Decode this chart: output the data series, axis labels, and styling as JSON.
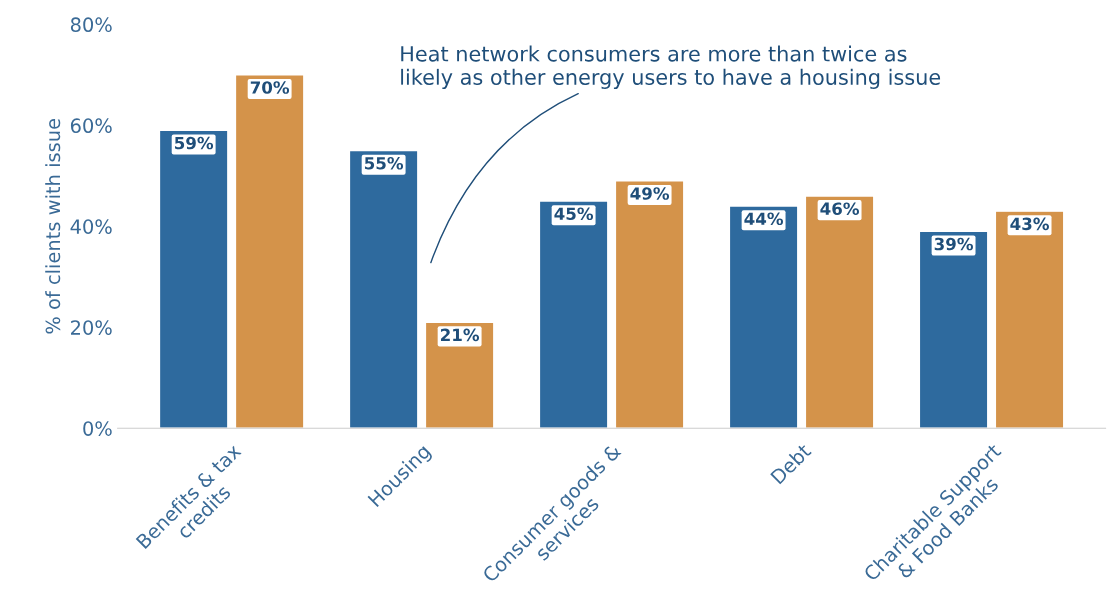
{
  "chart_data": {
    "type": "bar",
    "ylabel": "% of clients with issue",
    "categories": [
      "Benefits & tax\ncredits",
      "Housing",
      "Consumer goods &\nservices",
      "Debt",
      "Charitable Support\n& Food Banks"
    ],
    "series": [
      {
        "color": "#2e6a9e",
        "values": [
          59,
          55,
          45,
          44,
          39
        ],
        "value_labels": [
          "59%",
          "55%",
          "45%",
          "44%",
          "39%"
        ]
      },
      {
        "color": "#d4934a",
        "values": [
          70,
          21,
          49,
          46,
          43
        ],
        "value_labels": [
          "70%",
          "21%",
          "49%",
          "46%",
          "43%"
        ]
      }
    ],
    "ylim": [
      0,
      80
    ],
    "yticks": [
      {
        "value": 0,
        "label": "0%"
      },
      {
        "value": 20,
        "label": "20%"
      },
      {
        "value": 40,
        "label": "40%"
      },
      {
        "value": 60,
        "label": "60%"
      },
      {
        "value": 80,
        "label": "80%"
      }
    ],
    "grid": false,
    "legend": false,
    "annotations": [
      "Heat network consumers are more than twice as\nlikely as other energy users to have a housing issue"
    ]
  }
}
